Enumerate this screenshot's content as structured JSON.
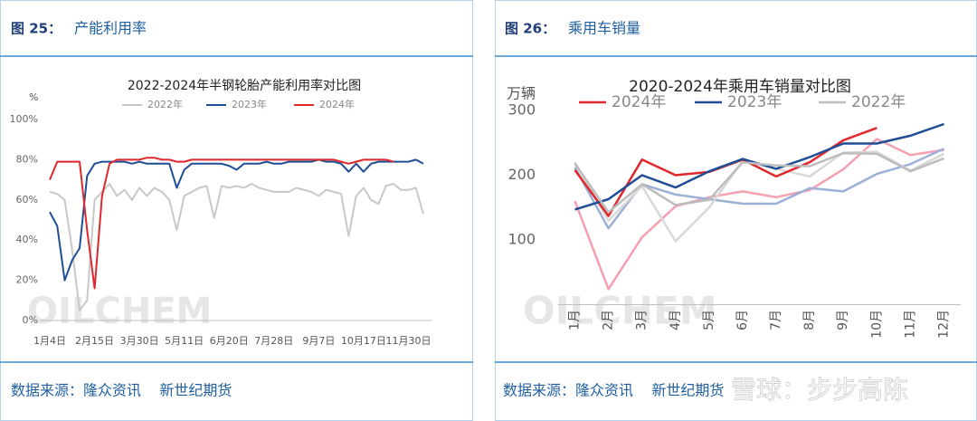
{
  "panels": [
    {
      "figure": "图 25：",
      "caption": "产能利用率",
      "source": "数据来源：隆众资讯    新世纪期货"
    },
    {
      "figure": "图 26：",
      "caption": "乘用车销量",
      "source": "数据来源：隆众资讯    新世纪期货"
    }
  ],
  "overlay_watermark": "雪球：步步高陈",
  "chart_data": [
    {
      "type": "line",
      "title": "2022-2024年半钢轮胎产能利用率对比图",
      "y_label": "%",
      "watermark": "OILCHEM",
      "categories": [
        "1月4日",
        null,
        null,
        null,
        null,
        null,
        "2月15日",
        null,
        null,
        null,
        null,
        null,
        "3月30日",
        null,
        null,
        null,
        null,
        null,
        "5月11日",
        null,
        null,
        null,
        null,
        null,
        "6月20日",
        null,
        null,
        null,
        null,
        null,
        "7月28日",
        null,
        null,
        null,
        null,
        null,
        "9月7日",
        null,
        null,
        null,
        null,
        null,
        "10月17日",
        null,
        null,
        null,
        null,
        null,
        "11月30日",
        null,
        null
      ],
      "series": [
        {
          "name": "2022年",
          "color": "#c8c8c8",
          "values": [
            64,
            63,
            60,
            35,
            5,
            10,
            60,
            64,
            68,
            62,
            65,
            60,
            66,
            62,
            66,
            64,
            60,
            45,
            62,
            64,
            66,
            67,
            51,
            67,
            66,
            67,
            66,
            68,
            66,
            65,
            64,
            64,
            64,
            66,
            65,
            64,
            62,
            65,
            64,
            63,
            42,
            62,
            66,
            60,
            58,
            67,
            68,
            65,
            65,
            66,
            53
          ]
        },
        {
          "name": "2023年",
          "color": "#1f4e96",
          "values": [
            54,
            47,
            20,
            30,
            36,
            72,
            78,
            79,
            79,
            79,
            79,
            78,
            79,
            78,
            78,
            78,
            78,
            66,
            75,
            78,
            78,
            78,
            78,
            78,
            77,
            75,
            78,
            78,
            78,
            79,
            78,
            78,
            79,
            79,
            79,
            79,
            80,
            79,
            79,
            78,
            74,
            78,
            74,
            78,
            79,
            79,
            79,
            79,
            79,
            80,
            78
          ]
        },
        {
          "name": "2024年",
          "color": "#e0282c",
          "values": [
            70,
            79,
            79,
            79,
            79,
            45,
            16,
            62,
            78,
            80,
            80,
            80,
            80,
            81,
            81,
            80,
            80,
            79,
            79,
            80,
            80,
            80,
            80,
            80,
            80,
            80,
            80,
            80,
            80,
            80,
            80,
            80,
            80,
            80,
            80,
            80,
            80,
            80,
            80,
            79,
            78,
            79,
            80,
            80,
            80,
            80,
            79,
            null,
            null,
            null,
            null
          ]
        }
      ],
      "ylim": [
        0,
        100
      ],
      "yticks": [
        {
          "value": 0,
          "label": "0%"
        },
        {
          "value": 20,
          "label": "20%"
        },
        {
          "value": 40,
          "label": "40%"
        },
        {
          "value": 60,
          "label": "60%"
        },
        {
          "value": 80,
          "label": "80%"
        },
        {
          "value": 100,
          "label": "100%"
        }
      ],
      "legend": "top",
      "grid": false
    },
    {
      "type": "line",
      "title": "2020-2024年乘用车销量对比图",
      "y_label": "万辆",
      "watermark": "OILCHEM",
      "categories": [
        "1月",
        "2月",
        "3月",
        "4月",
        "5月",
        "6月",
        "7月",
        "8月",
        "9月",
        "10月",
        "11月",
        "12月"
      ],
      "series": [
        {
          "name": "2024年",
          "color": "#e0282c",
          "values": [
            208,
            137,
            224,
            200,
            205,
            224,
            198,
            220,
            254,
            273,
            null,
            null
          ]
        },
        {
          "name": "2023年",
          "color": "#1f4e96",
          "values": [
            147,
            163,
            200,
            181,
            206,
            225,
            210,
            228,
            249,
            249,
            261,
            279
          ]
        },
        {
          "name": "2022年",
          "color": "#bdbdbd",
          "values": [
            218,
            143,
            186,
            154,
            162,
            220,
            215,
            214,
            234,
            233,
            206,
            226
          ]
        },
        {
          "name": null,
          "color": "#f4a0b0",
          "values": [
            160,
            24,
            104,
            152,
            166,
            175,
            166,
            177,
            209,
            256,
            231,
            239
          ]
        },
        {
          "name": null,
          "color": "#9cb0d8",
          "values": [
            212,
            118,
            186,
            170,
            163,
            156,
            156,
            180,
            175,
            202,
            217,
            241
          ]
        },
        {
          "name": null,
          "color": "#d8d8d8",
          "values": [
            220,
            130,
            183,
            98,
            150,
            222,
            210,
            198,
            235,
            236,
            207,
            233
          ]
        }
      ],
      "ylim": [
        0,
        300
      ],
      "yticks": [
        100,
        200,
        300
      ],
      "legend": "top",
      "grid": false
    }
  ]
}
